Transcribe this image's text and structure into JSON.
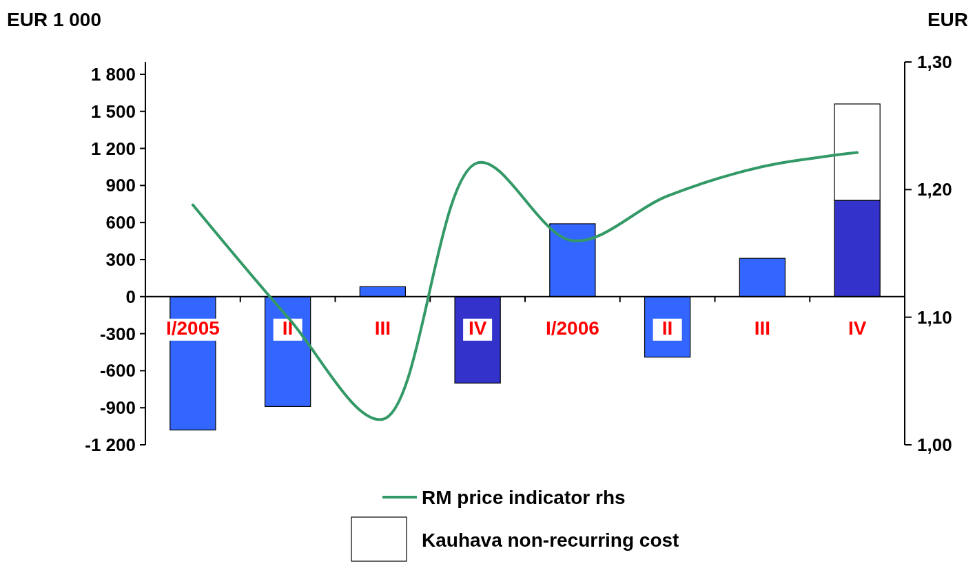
{
  "chart_data": {
    "type": "bar",
    "ylabel": "EUR 1 000",
    "y2label": "EUR",
    "categories": [
      "I/2005",
      "II",
      "III",
      "IV",
      "I/2006",
      "II",
      "III",
      "IV"
    ],
    "stacked": true,
    "legend": "bottom",
    "grid": false,
    "series": [
      {
        "colors": [
          "#3366ff",
          "#3366ff",
          "#3366ff",
          "#3333cc",
          "#3366ff",
          "#3366ff",
          "#3366ff",
          "#3333cc"
        ],
        "values": [
          -1080,
          -890,
          80,
          -700,
          590,
          -490,
          310,
          780
        ]
      },
      {
        "name": "Kauhava non-recurring cost",
        "color": "#ffffff",
        "values": [
          null,
          null,
          null,
          null,
          null,
          null,
          null,
          780
        ]
      },
      {
        "name": "RM price indicator rhs",
        "type": "line",
        "axis": "y2",
        "color": "#339966",
        "values": [
          1.188,
          1.1,
          1.02,
          1.221,
          1.16,
          1.195,
          1.218,
          1.229
        ]
      }
    ],
    "ylim": [
      -1200,
      1900
    ],
    "yticks": [
      {
        "value": -1200,
        "label": "-1 200"
      },
      -900,
      -600,
      -300,
      0,
      300,
      600,
      900,
      {
        "value": 1200,
        "label": "1 200"
      },
      {
        "value": 1500,
        "label": "1 500"
      },
      {
        "value": 1800,
        "label": "1 800"
      }
    ],
    "y2lim": [
      1.0,
      1.3
    ],
    "y2ticks": [
      {
        "value": 1.0,
        "label": "1,00"
      },
      {
        "value": 1.1,
        "label": "1,10"
      },
      {
        "value": 1.2,
        "label": "1,20"
      },
      {
        "value": 1.3,
        "label": "1,30"
      }
    ]
  }
}
